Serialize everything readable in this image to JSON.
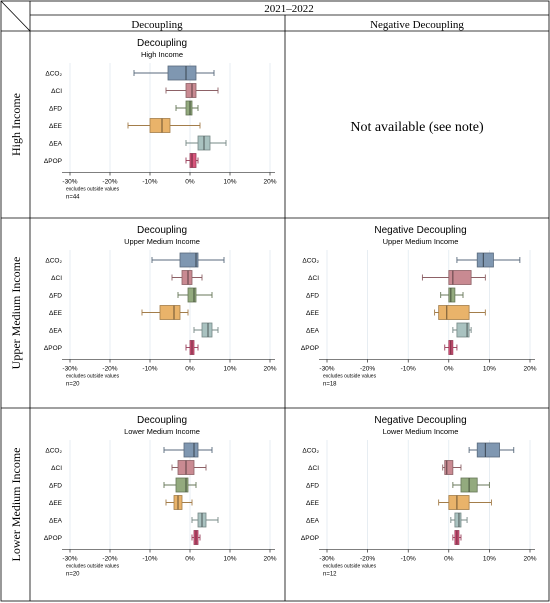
{
  "table": {
    "period": "2021–2022",
    "col_headers": [
      "Decoupling",
      "Negative Decoupling"
    ],
    "row_headers": [
      "High Income",
      "Upper Medium Income",
      "Lower Medium Income"
    ],
    "not_available": "Not available (see note)"
  },
  "chart_data": [
    {
      "type": "boxplot",
      "panel": "high-decoupling",
      "title": "Decoupling",
      "subtitle": "High Income",
      "xlim": [
        -32,
        22
      ],
      "xticks": [
        "-30%",
        "-20%",
        "-10%",
        "0%",
        "10%",
        "20%"
      ],
      "tick_values": [
        -30,
        -20,
        -10,
        0,
        10,
        20
      ],
      "note": "excludes outside values",
      "n_label": "n=44",
      "series": [
        {
          "name": "ΔCO₂",
          "whisker_low": -14,
          "q1": -5.5,
          "median": -1,
          "q3": 1.5,
          "whisker_high": 6,
          "color": "#7f97b1"
        },
        {
          "name": "ΔCI",
          "whisker_low": -6,
          "q1": -1,
          "median": 0.5,
          "q3": 1.5,
          "whisker_high": 7,
          "color": "#c98a92"
        },
        {
          "name": "ΔFD",
          "whisker_low": -3.5,
          "q1": -1,
          "median": 0,
          "q3": 0.5,
          "whisker_high": 2,
          "color": "#93aa7e"
        },
        {
          "name": "ΔEE",
          "whisker_low": -15.5,
          "q1": -10,
          "median": -7,
          "q3": -5,
          "whisker_high": 2.5,
          "color": "#e9b36a"
        },
        {
          "name": "ΔEA",
          "whisker_low": -1,
          "q1": 2,
          "median": 3.5,
          "q3": 5,
          "whisker_high": 9,
          "color": "#a9c2c0"
        },
        {
          "name": "ΔPOP",
          "whisker_low": -1,
          "q1": 0,
          "median": 0.5,
          "q3": 1.5,
          "whisker_high": 2,
          "color": "#d9557c"
        }
      ]
    },
    {
      "type": "boxplot",
      "panel": "upper-decoupling",
      "title": "Decoupling",
      "subtitle": "Upper Medium Income",
      "xlim": [
        -32,
        22
      ],
      "xticks": [
        "-30%",
        "-20%",
        "-10%",
        "0%",
        "10%",
        "20%"
      ],
      "tick_values": [
        -30,
        -20,
        -10,
        0,
        10,
        20
      ],
      "note": "excludes outside values",
      "n_label": "n=20",
      "series": [
        {
          "name": "ΔCO₂",
          "whisker_low": -9.5,
          "q1": -2.5,
          "median": 1.5,
          "q3": 2,
          "whisker_high": 8.5,
          "color": "#7f97b1"
        },
        {
          "name": "ΔCI",
          "whisker_low": -4.5,
          "q1": -2,
          "median": -0.5,
          "q3": 0.5,
          "whisker_high": 3,
          "color": "#c98a92"
        },
        {
          "name": "ΔFD",
          "whisker_low": -3,
          "q1": -0.5,
          "median": 1,
          "q3": 1.5,
          "whisker_high": 5.5,
          "color": "#93aa7e"
        },
        {
          "name": "ΔEE",
          "whisker_low": -12,
          "q1": -7.5,
          "median": -4,
          "q3": -2.5,
          "whisker_high": -0.5,
          "color": "#e9b36a"
        },
        {
          "name": "ΔEA",
          "whisker_low": 1,
          "q1": 3,
          "median": 4.5,
          "q3": 5.5,
          "whisker_high": 7,
          "color": "#a9c2c0"
        },
        {
          "name": "ΔPOP",
          "whisker_low": -1,
          "q1": 0,
          "median": 0.5,
          "q3": 1,
          "whisker_high": 2,
          "color": "#d9557c"
        }
      ]
    },
    {
      "type": "boxplot",
      "panel": "upper-negative",
      "title": "Negative Decoupling",
      "subtitle": "Upper Medium Income",
      "xlim": [
        -32,
        22
      ],
      "xticks": [
        "-30%",
        "-20%",
        "-10%",
        "0%",
        "10%",
        "20%"
      ],
      "tick_values": [
        -30,
        -20,
        -10,
        0,
        10,
        20
      ],
      "note": "excludes outside values",
      "n_label": "n=18",
      "series": [
        {
          "name": "ΔCO₂",
          "whisker_low": 2,
          "q1": 7,
          "median": 8.5,
          "q3": 11,
          "whisker_high": 17.5,
          "color": "#7f97b1"
        },
        {
          "name": "ΔCI",
          "whisker_low": -6.5,
          "q1": 0,
          "median": 1,
          "q3": 5.5,
          "whisker_high": 9,
          "color": "#c98a92"
        },
        {
          "name": "ΔFD",
          "whisker_low": -2,
          "q1": 0,
          "median": 0.5,
          "q3": 1.5,
          "whisker_high": 3.5,
          "color": "#93aa7e"
        },
        {
          "name": "ΔEE",
          "whisker_low": -3.5,
          "q1": -2.5,
          "median": -0.5,
          "q3": 5,
          "whisker_high": 9,
          "color": "#e9b36a"
        },
        {
          "name": "ΔEA",
          "whisker_low": 1,
          "q1": 2,
          "median": 4.5,
          "q3": 5,
          "whisker_high": 5.5,
          "color": "#a9c2c0"
        },
        {
          "name": "ΔPOP",
          "whisker_low": -1,
          "q1": 0,
          "median": 0.5,
          "q3": 1,
          "whisker_high": 2,
          "color": "#d9557c"
        }
      ]
    },
    {
      "type": "boxplot",
      "panel": "lower-decoupling",
      "title": "Decoupling",
      "subtitle": "Lower Medium Income",
      "xlim": [
        -32,
        22
      ],
      "xticks": [
        "-30%",
        "-20%",
        "-10%",
        "0%",
        "10%",
        "20%"
      ],
      "tick_values": [
        -30,
        -20,
        -10,
        0,
        10,
        20
      ],
      "note": "excludes outside values",
      "n_label": "n=20",
      "series": [
        {
          "name": "ΔCO₂",
          "whisker_low": -6.5,
          "q1": -1.5,
          "median": 1,
          "q3": 2,
          "whisker_high": 5.5,
          "color": "#7f97b1"
        },
        {
          "name": "ΔCI",
          "whisker_low": -4.5,
          "q1": -3,
          "median": -1,
          "q3": 1,
          "whisker_high": 4,
          "color": "#c98a92"
        },
        {
          "name": "ΔFD",
          "whisker_low": -6.5,
          "q1": -3.5,
          "median": -1,
          "q3": -0.5,
          "whisker_high": 1.5,
          "color": "#93aa7e"
        },
        {
          "name": "ΔEE",
          "whisker_low": -6,
          "q1": -4,
          "median": -3,
          "q3": -2,
          "whisker_high": 0.5,
          "color": "#e9b36a"
        },
        {
          "name": "ΔEA",
          "whisker_low": 0.5,
          "q1": 2,
          "median": 3,
          "q3": 4,
          "whisker_high": 7,
          "color": "#a9c2c0"
        },
        {
          "name": "ΔPOP",
          "whisker_low": 0.5,
          "q1": 1,
          "median": 1.5,
          "q3": 2,
          "whisker_high": 2.5,
          "color": "#d9557c"
        }
      ]
    },
    {
      "type": "boxplot",
      "panel": "lower-negative",
      "title": "Negative Decoupling",
      "subtitle": "Lower Medium Income",
      "xlim": [
        -32,
        22
      ],
      "xticks": [
        "-30%",
        "-20%",
        "-10%",
        "0%",
        "10%",
        "20%"
      ],
      "tick_values": [
        -30,
        -20,
        -10,
        0,
        10,
        20
      ],
      "note": "excludes outside values",
      "n_label": "n=12",
      "series": [
        {
          "name": "ΔCO₂",
          "whisker_low": 5,
          "q1": 7,
          "median": 9,
          "q3": 12.5,
          "whisker_high": 16,
          "color": "#7f97b1"
        },
        {
          "name": "ΔCI",
          "whisker_low": -1.5,
          "q1": -1,
          "median": -0.5,
          "q3": 1,
          "whisker_high": 3,
          "color": "#c98a92"
        },
        {
          "name": "ΔFD",
          "whisker_low": 1,
          "q1": 3,
          "median": 5,
          "q3": 7,
          "whisker_high": 10,
          "color": "#93aa7e"
        },
        {
          "name": "ΔEE",
          "whisker_low": -2.5,
          "q1": 0,
          "median": 2,
          "q3": 5,
          "whisker_high": 10.5,
          "color": "#e9b36a"
        },
        {
          "name": "ΔEA",
          "whisker_low": 0.5,
          "q1": 1.5,
          "median": 2.5,
          "q3": 3,
          "whisker_high": 4.5,
          "color": "#a9c2c0"
        },
        {
          "name": "ΔPOP",
          "whisker_low": 1,
          "q1": 1.5,
          "median": 2,
          "q3": 2.5,
          "whisker_high": 3,
          "color": "#d9557c"
        }
      ]
    }
  ]
}
